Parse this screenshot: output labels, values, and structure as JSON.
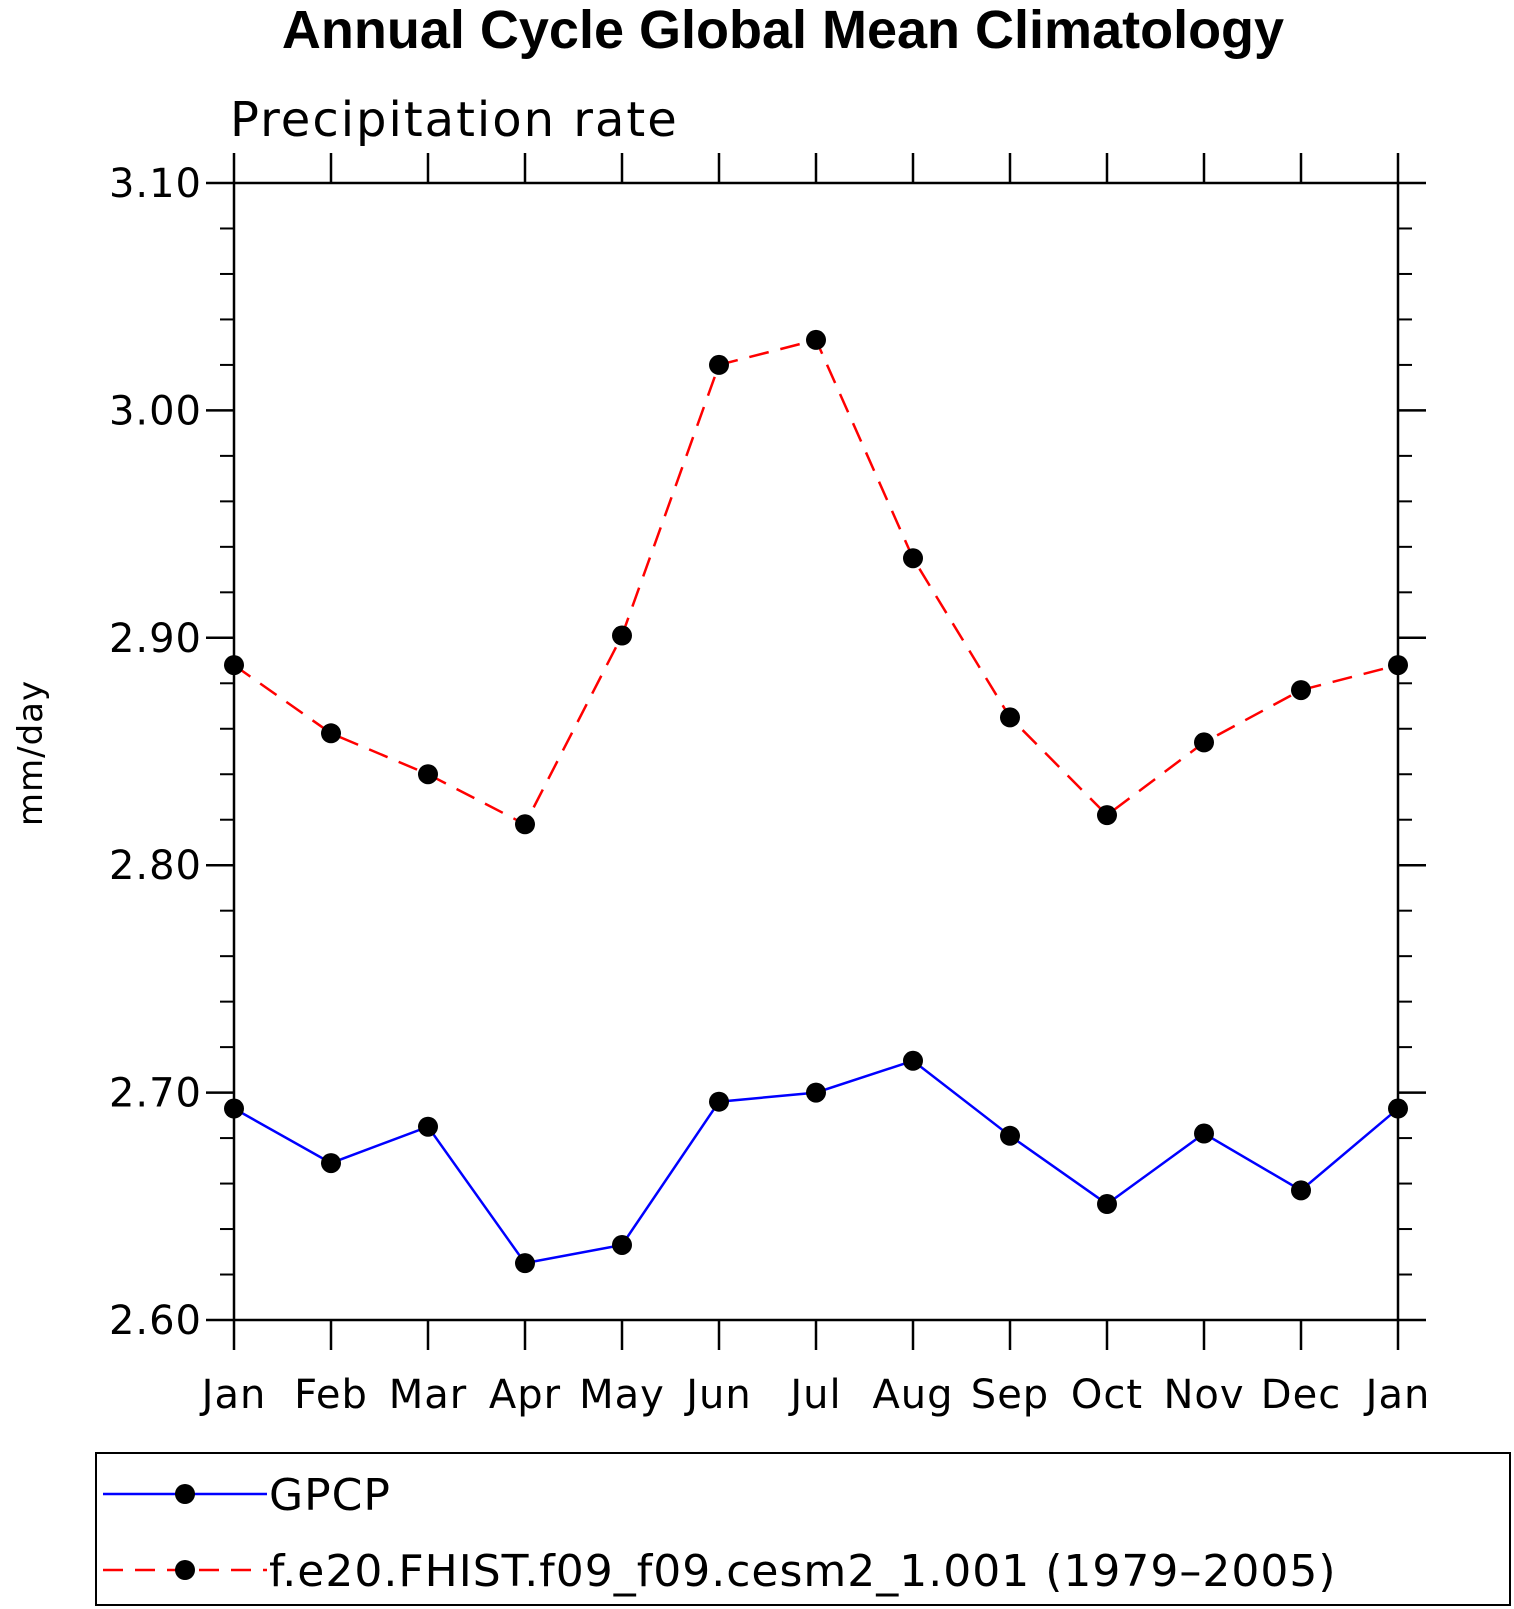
{
  "chart_data": {
    "type": "line",
    "title": "Annual Cycle Global Mean Climatology",
    "subtitle": "Precipitation rate",
    "xlabel": "",
    "ylabel": "mm/day",
    "categories": [
      "Jan",
      "Feb",
      "Mar",
      "Apr",
      "May",
      "Jun",
      "Jul",
      "Aug",
      "Sep",
      "Oct",
      "Nov",
      "Dec",
      "Jan"
    ],
    "ylim": [
      2.6,
      3.1
    ],
    "yticks": [
      "2.60",
      "2.70",
      "2.80",
      "2.90",
      "3.00",
      "3.10"
    ],
    "grid": false,
    "legend_position": "bottom",
    "series": [
      {
        "name": "GPCP",
        "color": "#0000ff",
        "style": "solid",
        "marker": "filled-circle",
        "values": [
          2.693,
          2.669,
          2.685,
          2.625,
          2.633,
          2.696,
          2.7,
          2.714,
          2.681,
          2.651,
          2.682,
          2.657,
          2.693
        ]
      },
      {
        "name": "f.e20.FHIST.f09_f09.cesm2_1.001 (1979–2005)",
        "color": "#ff0000",
        "style": "dashed",
        "marker": "filled-circle",
        "values": [
          2.888,
          2.858,
          2.84,
          2.818,
          2.901,
          3.02,
          3.031,
          2.935,
          2.865,
          2.822,
          2.854,
          2.877,
          2.888
        ]
      }
    ]
  }
}
